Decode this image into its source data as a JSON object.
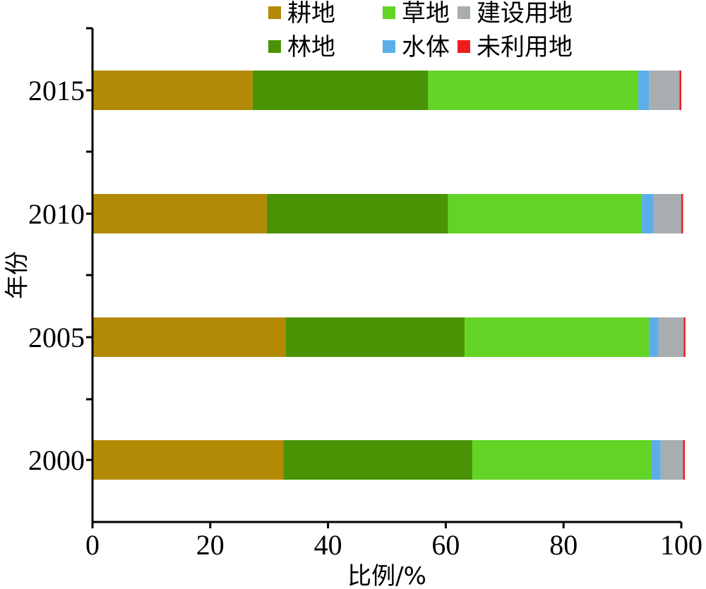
{
  "chart_data": {
    "type": "bar",
    "orientation": "horizontal",
    "stacked": true,
    "xlabel": "比例/%",
    "ylabel": "年份",
    "xlim": [
      0,
      100
    ],
    "xticks": [
      "0",
      "20",
      "40",
      "60",
      "80",
      "100"
    ],
    "xtick_values": [
      0,
      20,
      40,
      60,
      80,
      100
    ],
    "categories": [
      "2015",
      "2010",
      "2005",
      "2000"
    ],
    "legend_position": "top",
    "grid": false,
    "series": [
      {
        "name": "耕地",
        "color": "#B38A05",
        "values": [
          27.2,
          29.6,
          32.8,
          32.4
        ]
      },
      {
        "name": "林地",
        "color": "#4A9305",
        "values": [
          29.8,
          30.8,
          30.4,
          32.1
        ]
      },
      {
        "name": "草地",
        "color": "#63D425",
        "values": [
          35.7,
          32.9,
          31.3,
          30.4
        ]
      },
      {
        "name": "水体",
        "color": "#5BAEEA",
        "values": [
          1.8,
          1.9,
          1.6,
          1.6
        ]
      },
      {
        "name": "建设用地",
        "color": "#A8ADB0",
        "values": [
          5.2,
          4.8,
          4.3,
          3.8
        ]
      },
      {
        "name": "未利用地",
        "color": "#EE1C1C",
        "values": [
          0.3,
          0.3,
          0.3,
          0.3
        ]
      }
    ],
    "legend_layout": [
      [
        "耕地",
        "草地",
        "建设用地"
      ],
      [
        "林地",
        "水体",
        "未利用地"
      ]
    ]
  }
}
